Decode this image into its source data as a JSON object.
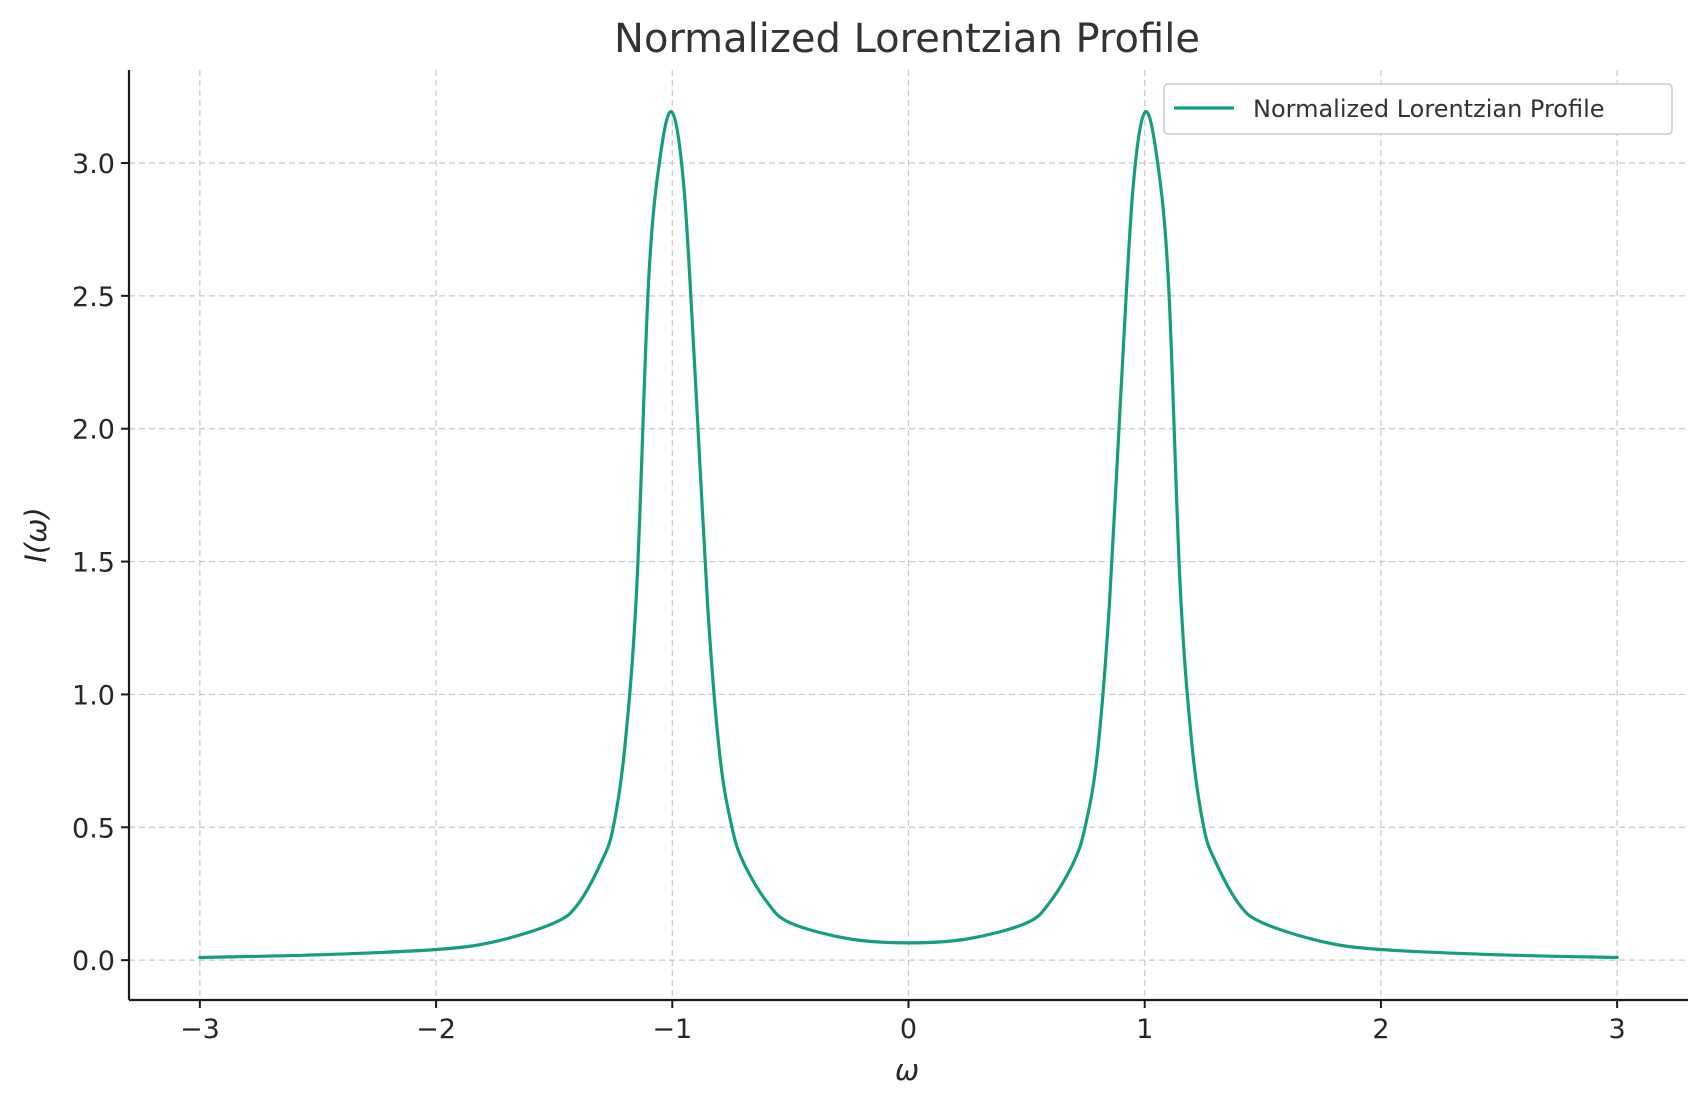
{
  "chart_data": {
    "type": "line",
    "title": "Normalized Lorentzian Profile",
    "xlabel": "ω",
    "ylabel": "I(ω)",
    "xlim": [
      -3.3,
      3.3
    ],
    "ylim": [
      -0.15,
      3.35
    ],
    "x_ticks": [
      -3,
      -2,
      -1,
      0,
      1,
      2,
      3
    ],
    "x_tick_labels": [
      "−3",
      "−2",
      "−1",
      "0",
      "1",
      "2",
      "3"
    ],
    "y_ticks": [
      0.0,
      0.5,
      1.0,
      1.5,
      2.0,
      2.5,
      3.0
    ],
    "y_tick_labels": [
      "0.0",
      "0.5",
      "1.0",
      "1.5",
      "2.0",
      "2.5",
      "3.0"
    ],
    "grid": true,
    "legend_position": "top-right",
    "series": [
      {
        "name": "Normalized Lorentzian Profile",
        "color": "#139e7f",
        "x": [
          -3.0,
          -2.5,
          -2.0,
          -1.75,
          -1.5,
          -1.4,
          -1.3,
          -1.25,
          -1.2,
          -1.15,
          -1.1,
          -1.05,
          -1.0,
          -0.95,
          -0.9,
          -0.85,
          -0.8,
          -0.75,
          -0.7,
          -0.6,
          -0.5,
          -0.25,
          0.0,
          0.25,
          0.5,
          0.6,
          0.7,
          0.75,
          0.8,
          0.85,
          0.9,
          0.95,
          1.0,
          1.05,
          1.1,
          1.15,
          1.2,
          1.25,
          1.3,
          1.4,
          1.5,
          1.75,
          2.0,
          2.5,
          3.0
        ],
        "y": [
          0.01,
          0.02,
          0.04,
          0.07,
          0.14,
          0.21,
          0.37,
          0.5,
          0.81,
          1.41,
          2.56,
          3.03,
          3.19,
          2.9,
          2.15,
          1.33,
          0.78,
          0.51,
          0.37,
          0.22,
          0.14,
          0.08,
          0.065,
          0.08,
          0.14,
          0.22,
          0.37,
          0.51,
          0.78,
          1.33,
          2.15,
          2.9,
          3.19,
          3.03,
          2.56,
          1.41,
          0.81,
          0.5,
          0.37,
          0.21,
          0.14,
          0.07,
          0.04,
          0.02,
          0.01
        ]
      }
    ]
  }
}
